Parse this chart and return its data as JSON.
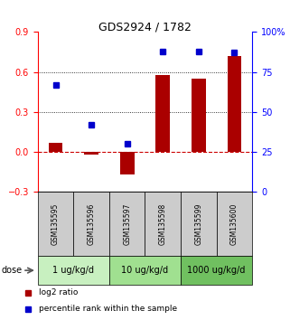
{
  "title": "GDS2924 / 1782",
  "samples": [
    "GSM135595",
    "GSM135596",
    "GSM135597",
    "GSM135598",
    "GSM135599",
    "GSM135600"
  ],
  "log2_ratio": [
    0.07,
    -0.02,
    -0.17,
    0.58,
    0.55,
    0.72
  ],
  "percentile": [
    67,
    42,
    30,
    88,
    88,
    87
  ],
  "doses": [
    {
      "label": "1 ug/kg/d",
      "samples": [
        0,
        1
      ],
      "color": "#c8f0c0"
    },
    {
      "label": "10 ug/kg/d",
      "samples": [
        2,
        3
      ],
      "color": "#a0e090"
    },
    {
      "label": "1000 ug/kg/d",
      "samples": [
        4,
        5
      ],
      "color": "#70c060"
    }
  ],
  "bar_color": "#aa0000",
  "dot_color": "#0000cc",
  "left_ylim": [
    -0.3,
    0.9
  ],
  "right_ylim": [
    0,
    100
  ],
  "left_yticks": [
    -0.3,
    0.0,
    0.3,
    0.6,
    0.9
  ],
  "right_yticks": [
    0,
    25,
    50,
    75,
    100
  ],
  "right_yticklabels": [
    "0",
    "25",
    "50",
    "75",
    "100%"
  ],
  "dotted_lines": [
    0.3,
    0.6
  ],
  "bg_color": "#ffffff",
  "dose_label": "dose",
  "legend_items": [
    {
      "label": "log2 ratio",
      "color": "#aa0000"
    },
    {
      "label": "percentile rank within the sample",
      "color": "#0000cc"
    }
  ],
  "bar_width": 0.4,
  "sample_box_color": "#cccccc",
  "title_fontsize": 9,
  "tick_fontsize": 7,
  "sample_fontsize": 5.5,
  "dose_fontsize": 7,
  "legend_fontsize": 6.5
}
